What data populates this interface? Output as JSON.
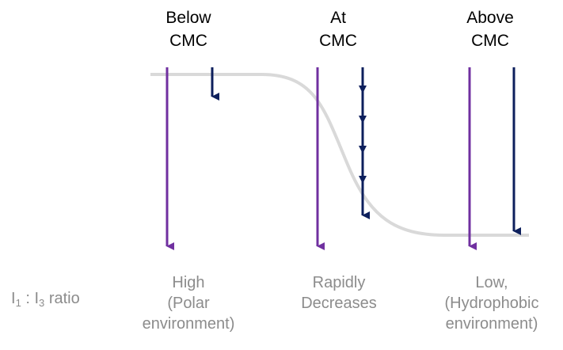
{
  "regions": [
    {
      "header_line1": "Below",
      "header_line2": "CMC",
      "result_line1": "High",
      "result_line2": "(Polar",
      "result_line3": "environment)"
    },
    {
      "header_line1": "At",
      "header_line2": "CMC",
      "result_line1": "Rapidly",
      "result_line2": "Decreases",
      "result_line3": ""
    },
    {
      "header_line1": "Above",
      "header_line2": "CMC",
      "result_line1": "Low,",
      "result_line2": "(Hydrophobic",
      "result_line3": "environment)"
    }
  ],
  "ratio_label": {
    "i1": "I",
    "sub1": "1",
    "sep": " : ",
    "i3": "I",
    "sub3": "3",
    "suffix": " ratio"
  },
  "colors": {
    "excitation_arrow": "#7030a0",
    "emission_arrow": "#0d1f5c",
    "curve": "#d9d9d9",
    "header_text": "#000000",
    "result_text": "#8c8c8c"
  }
}
